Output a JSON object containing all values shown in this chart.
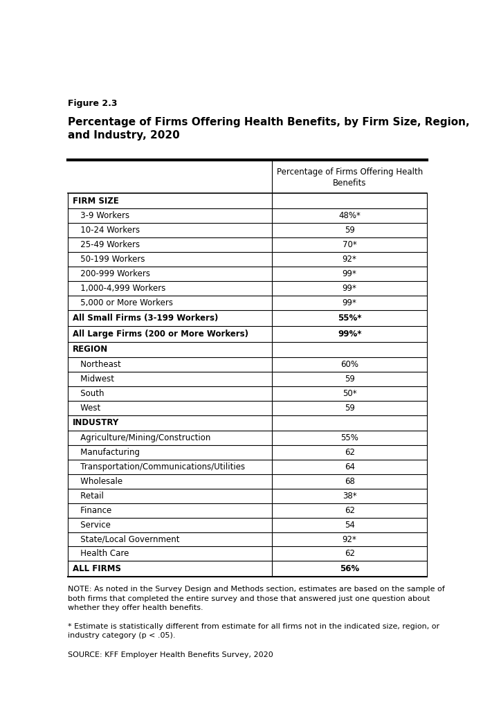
{
  "figure_label": "Figure 2.3",
  "title": "Percentage of Firms Offering Health Benefits, by Firm Size, Region,\nand Industry, 2020",
  "col_header": "Percentage of Firms Offering Health\nBenefits",
  "sections": [
    {
      "header": "FIRM SIZE",
      "rows": [
        {
          "label": "   3-9 Workers",
          "value": "48%*",
          "bold": false
        },
        {
          "label": "   10-24 Workers",
          "value": "59",
          "bold": false
        },
        {
          "label": "   25-49 Workers",
          "value": "70*",
          "bold": false
        },
        {
          "label": "   50-199 Workers",
          "value": "92*",
          "bold": false
        },
        {
          "label": "   200-999 Workers",
          "value": "99*",
          "bold": false
        },
        {
          "label": "   1,000-4,999 Workers",
          "value": "99*",
          "bold": false
        },
        {
          "label": "   5,000 or More Workers",
          "value": "99*",
          "bold": false
        },
        {
          "label": "All Small Firms (3-199 Workers)",
          "value": "55%*",
          "bold": true
        },
        {
          "label": "All Large Firms (200 or More Workers)",
          "value": "99%*",
          "bold": true
        }
      ]
    },
    {
      "header": "REGION",
      "rows": [
        {
          "label": "   Northeast",
          "value": "60%",
          "bold": false
        },
        {
          "label": "   Midwest",
          "value": "59",
          "bold": false
        },
        {
          "label": "   South",
          "value": "50*",
          "bold": false
        },
        {
          "label": "   West",
          "value": "59",
          "bold": false
        }
      ]
    },
    {
      "header": "INDUSTRY",
      "rows": [
        {
          "label": "   Agriculture/Mining/Construction",
          "value": "55%",
          "bold": false
        },
        {
          "label": "   Manufacturing",
          "value": "62",
          "bold": false
        },
        {
          "label": "   Transportation/Communications/Utilities",
          "value": "64",
          "bold": false
        },
        {
          "label": "   Wholesale",
          "value": "68",
          "bold": false
        },
        {
          "label": "   Retail",
          "value": "38*",
          "bold": false
        },
        {
          "label": "   Finance",
          "value": "62",
          "bold": false
        },
        {
          "label": "   Service",
          "value": "54",
          "bold": false
        },
        {
          "label": "   State/Local Government",
          "value": "92*",
          "bold": false
        },
        {
          "label": "   Health Care",
          "value": "62",
          "bold": false
        }
      ]
    }
  ],
  "footer_row": {
    "label": "ALL FIRMS",
    "value": "56%",
    "bold": true
  },
  "note_text": "NOTE: As noted in the Survey Design and Methods section, estimates are based on the sample of\nboth firms that completed the entire survey and those that answered just one question about\nwhether they offer health benefits.",
  "asterisk_note": "* Estimate is statistically different from estimate for all firms not in the indicated size, region, or\nindustry category (p < .05).",
  "source_text": "SOURCE: KFF Employer Health Benefits Survey, 2020",
  "bg_color": "#ffffff",
  "text_color": "#000000",
  "col_split": 0.565
}
